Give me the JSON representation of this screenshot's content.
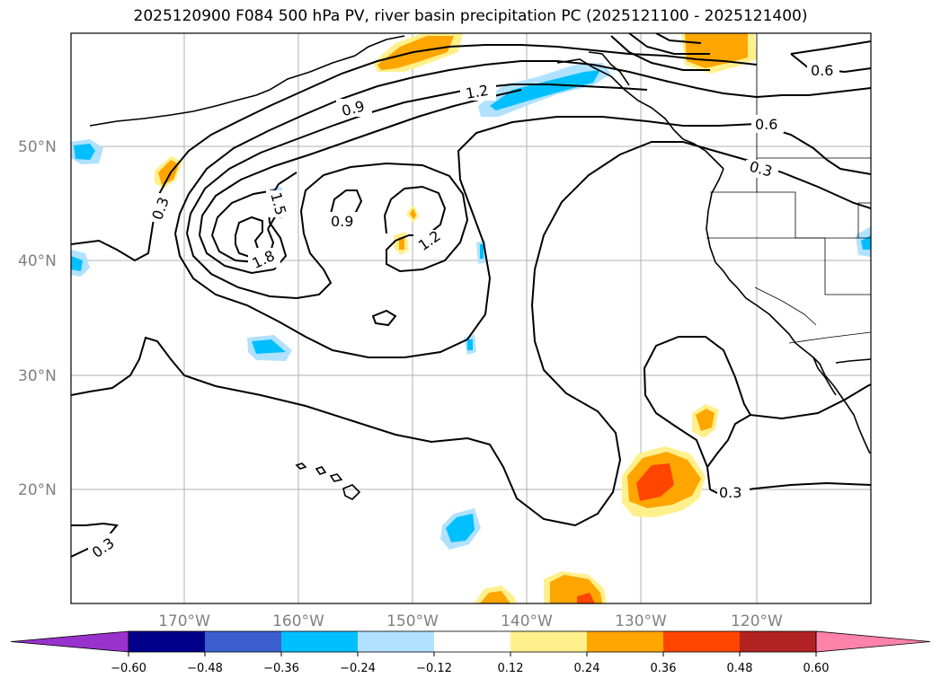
{
  "title": "2025120900 F084 500 hPa PV, river basin precipitation PC (2025121100 - 2025121400)",
  "map": {
    "lat_labels": [
      "50°N",
      "40°N",
      "30°N",
      "20°N"
    ],
    "lon_labels": [
      "170°W",
      "160°W",
      "150°W",
      "140°W",
      "130°W",
      "120°W"
    ],
    "contour_labels": [
      "0.3",
      "0.6",
      "0.6",
      "0.9",
      "0.9",
      "1.2",
      "1.2",
      "1.5",
      "1.8",
      "0.3",
      "0.3",
      "0.3"
    ],
    "field": "500 hPa PV",
    "shading": "river basin precipitation PC"
  },
  "colorbar": {
    "ticks": [
      "−0.60",
      "−0.48",
      "−0.36",
      "−0.24",
      "−0.12",
      "0.12",
      "0.24",
      "0.36",
      "0.48",
      "0.60"
    ],
    "colors": [
      "#9932cc",
      "#00008b",
      "#3a5fcd",
      "#00bfff",
      "#b0e2ff",
      "#ffffff",
      "#fff08c",
      "#ffa500",
      "#ff4500",
      "#b22222",
      "#ff82ab"
    ],
    "extend": "both"
  }
}
